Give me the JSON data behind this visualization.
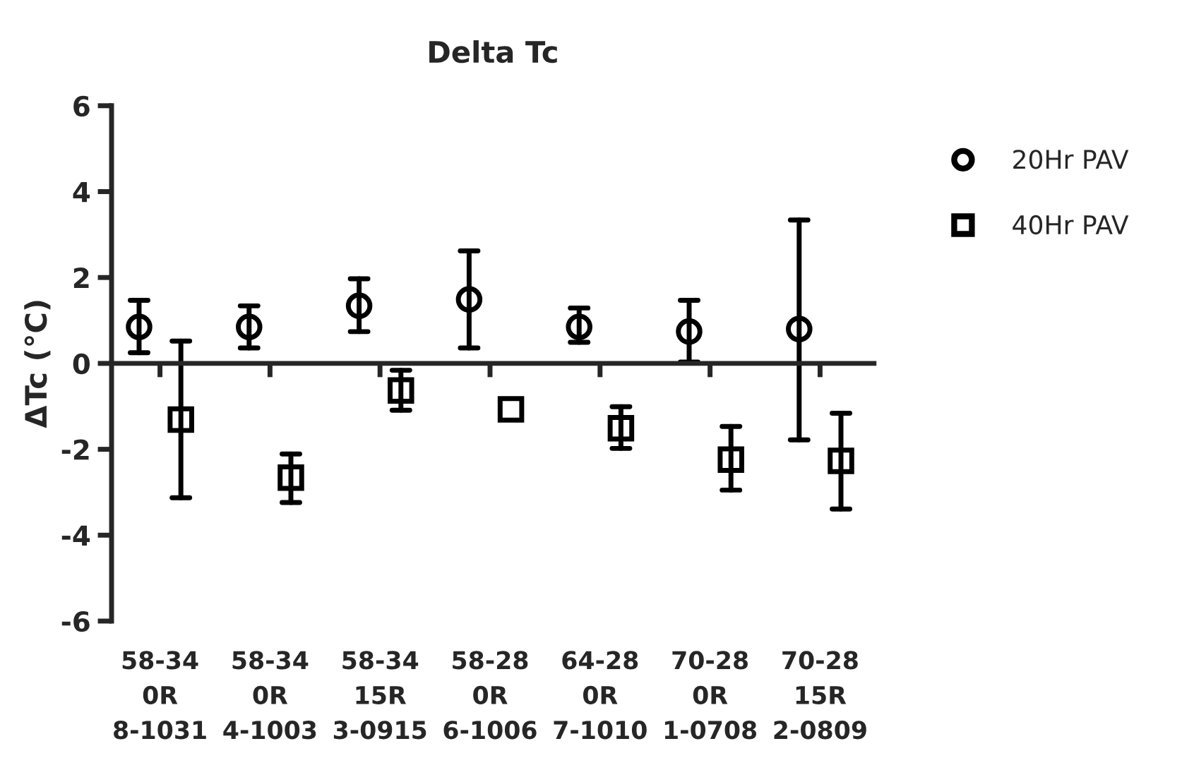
{
  "chart_data": {
    "type": "scatter",
    "title": "Delta Tc",
    "ylabel": "ΔTc (°C)",
    "categories": [
      "58-34\n0R\n8-1031",
      "58-34\n0R\n4-1003",
      "58-34\n15R\n3-0915",
      "58-28\n0R\n6-1006",
      "64-28\n0R\n7-1010",
      "70-28\n0R\n1-0708",
      "70-28\n15R\n2-0809"
    ],
    "series": [
      {
        "name": "20Hr PAV",
        "color": "#000000",
        "marker": "circle",
        "values": [
          0.85,
          0.85,
          1.34,
          1.49,
          0.85,
          0.74,
          0.8
        ],
        "errors": [
          [
            0.25,
            1.47
          ],
          [
            0.36,
            1.34
          ],
          [
            0.74,
            1.97
          ],
          [
            0.36,
            2.62
          ],
          [
            0.49,
            1.29
          ],
          [
            0.03,
            1.47
          ],
          [
            -1.78,
            3.34
          ]
        ]
      },
      {
        "name": "40Hr PAV",
        "color": "#000000",
        "marker": "square",
        "values": [
          -1.31,
          -2.66,
          -0.63,
          -1.07,
          -1.51,
          -2.24,
          -2.27
        ],
        "errors": [
          [
            -3.13,
            0.52
          ],
          [
            -3.24,
            -2.11
          ],
          [
            -1.09,
            -0.16
          ],
          null,
          [
            -1.98,
            -1.01
          ],
          [
            -2.95,
            -1.47
          ],
          [
            -3.39,
            -1.16
          ]
        ]
      }
    ],
    "ylim": [
      -6,
      6
    ],
    "yticks": [
      -6,
      -4,
      -2,
      0,
      2,
      4,
      6
    ],
    "legend": "right"
  }
}
